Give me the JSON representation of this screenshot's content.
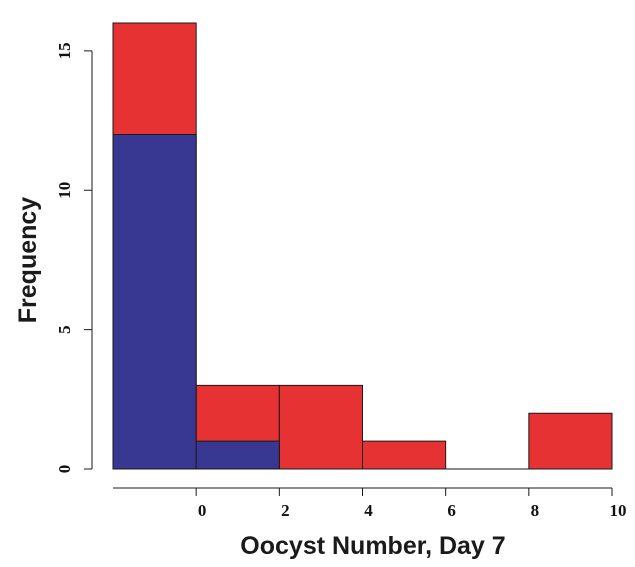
{
  "chart_data": {
    "type": "bar",
    "title": "",
    "xlabel": "Oocyst Number, Day 7",
    "ylabel": "Frequency",
    "xlim": [
      -2,
      10
    ],
    "ylim": [
      0,
      16
    ],
    "x_ticks": [
      "0",
      "2",
      "4",
      "6",
      "8",
      "10"
    ],
    "y_ticks": [
      "0",
      "5",
      "10",
      "15"
    ],
    "bins": [
      [
        -2,
        0
      ],
      [
        0,
        2
      ],
      [
        2,
        4
      ],
      [
        4,
        6
      ],
      [
        6,
        8
      ],
      [
        8,
        10
      ]
    ],
    "series": [
      {
        "color": "#e63232",
        "values": [
          16,
          3,
          3,
          1,
          0,
          2
        ]
      },
      {
        "color": "#383893",
        "values": [
          12,
          1,
          0,
          0,
          0,
          0
        ]
      }
    ],
    "grid": false
  }
}
